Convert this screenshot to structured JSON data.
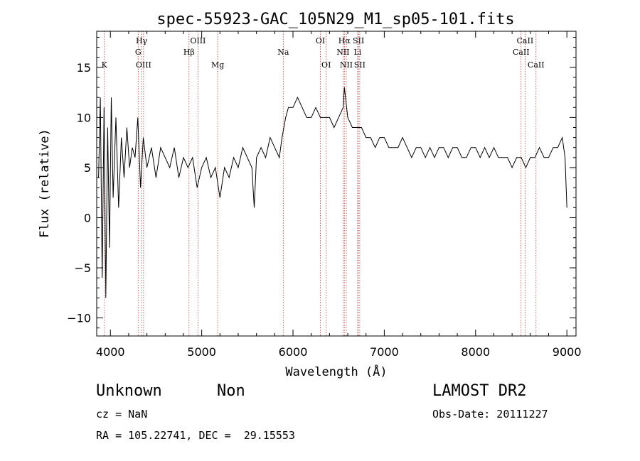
{
  "chart_data": {
    "type": "line",
    "title": "spec-55923-GAC_105N29_M1_sp05-101.fits",
    "xlabel": "Wavelength (Å)",
    "ylabel": "Flux (relative)",
    "xlim": [
      3850,
      9100
    ],
    "ylim": [
      -11.8,
      18.6
    ],
    "xticks": [
      4000,
      5000,
      6000,
      7000,
      8000,
      9000
    ],
    "yticks": [
      -10,
      -5,
      0,
      5,
      10,
      15
    ],
    "grid": false,
    "legend": "none",
    "line_color": "#000000",
    "marker_color": "#b04040",
    "spectral_lines": [
      {
        "label": "K",
        "x": 3934,
        "row": 3
      },
      {
        "label": "Hγ",
        "x": 4341,
        "row": 1
      },
      {
        "label": "G",
        "x": 4304,
        "row": 2
      },
      {
        "label": "OIII",
        "x": 4363,
        "row": 3
      },
      {
        "label": "Hβ",
        "x": 4861,
        "row": 2
      },
      {
        "label": "OIII",
        "x": 4959,
        "row": 1
      },
      {
        "label": "Mg",
        "x": 5175,
        "row": 3
      },
      {
        "label": "Na",
        "x": 5893,
        "row": 2
      },
      {
        "label": "OI",
        "x": 6300,
        "row": 1
      },
      {
        "label": "OI",
        "x": 6364,
        "row": 3
      },
      {
        "label": "Hα",
        "x": 6563,
        "row": 1
      },
      {
        "label": "NII",
        "x": 6548,
        "row": 2
      },
      {
        "label": "NII",
        "x": 6584,
        "row": 3
      },
      {
        "label": "SII",
        "x": 6717,
        "row": 1
      },
      {
        "label": "Li",
        "x": 6708,
        "row": 2
      },
      {
        "label": "SII",
        "x": 6731,
        "row": 3
      },
      {
        "label": "CaII",
        "x": 8542,
        "row": 1
      },
      {
        "label": "CaII",
        "x": 8498,
        "row": 2
      },
      {
        "label": "CaII",
        "x": 8662,
        "row": 3
      }
    ],
    "series": [
      {
        "x": [
          3870,
          3890,
          3910,
          3930,
          3950,
          3970,
          3990,
          4010,
          4030,
          4060,
          4090,
          4120,
          4150,
          4180,
          4210,
          4240,
          4270,
          4300,
          4330,
          4360,
          4400,
          4450,
          4500,
          4550,
          4600,
          4650,
          4700,
          4750,
          4800,
          4850,
          4900,
          4950,
          5000,
          5050,
          5100,
          5150,
          5200,
          5250,
          5300,
          5350,
          5400,
          5450,
          5500,
          5550,
          5575,
          5600,
          5650,
          5700,
          5750,
          5800,
          5850,
          5880,
          5900,
          5920,
          5950,
          6000,
          6050,
          6100,
          6150,
          6200,
          6250,
          6300,
          6350,
          6400,
          6450,
          6500,
          6550,
          6563,
          6600,
          6650,
          6700,
          6750,
          6800,
          6850,
          6900,
          6950,
          7000,
          7050,
          7100,
          7150,
          7200,
          7250,
          7300,
          7350,
          7400,
          7450,
          7500,
          7550,
          7600,
          7650,
          7700,
          7750,
          7800,
          7850,
          7900,
          7950,
          8000,
          8050,
          8100,
          8150,
          8200,
          8250,
          8300,
          8350,
          8400,
          8450,
          8500,
          8550,
          8600,
          8650,
          8700,
          8750,
          8800,
          8850,
          8900,
          8950,
          8980,
          9000
        ],
        "y": [
          4,
          12,
          -6,
          11,
          -8,
          9,
          -3,
          12,
          2,
          10,
          1,
          8,
          4,
          9,
          5,
          7,
          6,
          10,
          3,
          8,
          5,
          7,
          4,
          7,
          6,
          5,
          7,
          4,
          6,
          5,
          6,
          3,
          5,
          6,
          4,
          5,
          2,
          5,
          4,
          6,
          5,
          7,
          6,
          5,
          1,
          6,
          7,
          6,
          8,
          7,
          6,
          8,
          9,
          10,
          11,
          11,
          12,
          11,
          10,
          10,
          11,
          10,
          10,
          10,
          9,
          10,
          11,
          13,
          10,
          9,
          9,
          9,
          8,
          8,
          7,
          8,
          8,
          7,
          7,
          7,
          8,
          7,
          6,
          7,
          7,
          6,
          7,
          6,
          7,
          7,
          6,
          7,
          7,
          6,
          6,
          7,
          7,
          6,
          7,
          6,
          7,
          6,
          6,
          6,
          5,
          6,
          6,
          5,
          6,
          6,
          7,
          6,
          6,
          7,
          7,
          8,
          6,
          1
        ]
      }
    ]
  },
  "info": {
    "class": "Unknown",
    "subclass": "Non",
    "survey": "LAMOST DR2",
    "cz": "cz = NaN",
    "obs_date": "Obs-Date: 20111227",
    "coords": "RA = 105.22741, DEC =  29.15553"
  }
}
